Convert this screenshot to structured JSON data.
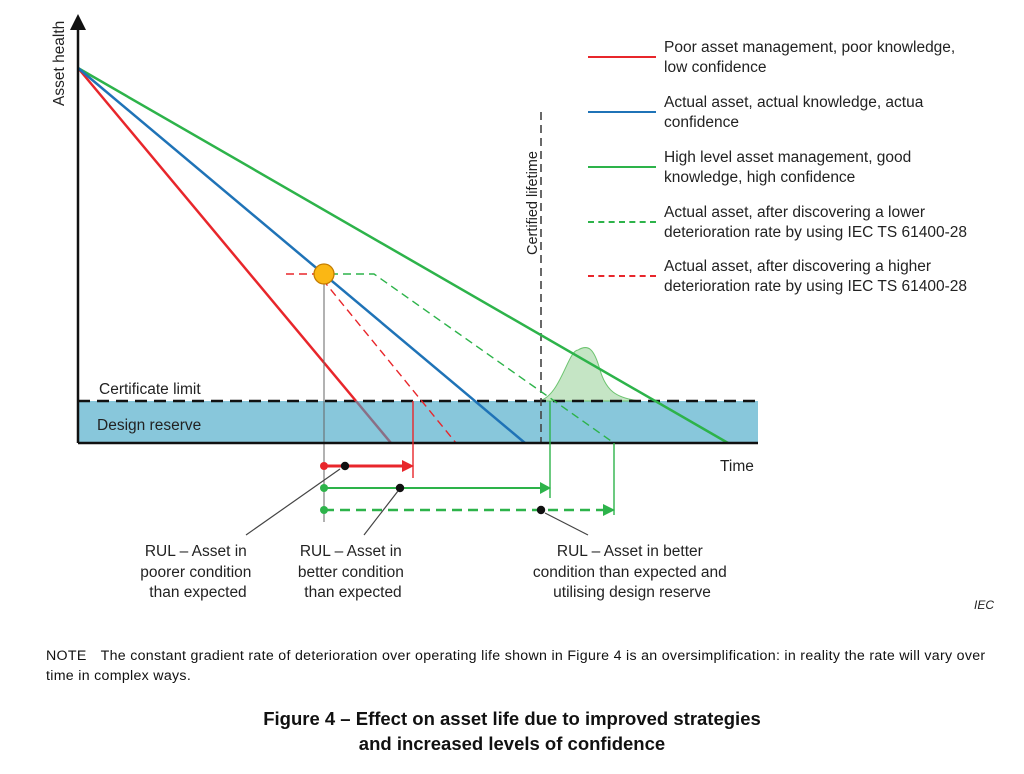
{
  "axes": {
    "y_label": "Asset health",
    "x_label": "Time"
  },
  "zones": {
    "certificate_limit": "Certificate limit",
    "design_reserve": "Design reserve",
    "certified_lifetime": "Certified lifetime"
  },
  "legend": [
    {
      "lines": [
        "Poor asset management, poor knowledge,",
        "low confidence"
      ],
      "color": "#e8262b",
      "style": "solid"
    },
    {
      "lines": [
        "Actual asset, actual knowledge, actua",
        "confidence"
      ],
      "color": "#1f73b7",
      "style": "solid"
    },
    {
      "lines": [
        "High level asset management, good",
        "knowledge, high confidence"
      ],
      "color": "#2db34a",
      "style": "solid"
    },
    {
      "lines": [
        "Actual asset, after discovering a lower",
        "deterioration rate by using IEC TS 61400-28"
      ],
      "color": "#2db34a",
      "style": "dashed"
    },
    {
      "lines": [
        "Actual asset, after discovering a higher",
        "deterioration rate by using IEC TS 61400-28"
      ],
      "color": "#e8262b",
      "style": "dashed"
    }
  ],
  "annotations": [
    {
      "lines": [
        "RUL – Asset in",
        "poorer condition",
        "than expected"
      ]
    },
    {
      "lines": [
        "RUL – Asset in",
        "better condition",
        "than expected"
      ]
    },
    {
      "lines": [
        "RUL – Asset in better",
        "condition than expected and",
        "utilising design reserve"
      ]
    }
  ],
  "iec_mark": "IEC",
  "note": {
    "tag": "NOTE",
    "text": "The constant gradient rate of deterioration over operating life shown in Figure 4 is an oversimplification: in reality the rate will vary over time in complex ways."
  },
  "caption": {
    "line1": "Figure 4 – Effect on asset life due to improved strategies",
    "line2": "and increased levels of confidence"
  },
  "colors": {
    "red": "#e8262b",
    "blue": "#1f73b7",
    "green": "#2db34a",
    "design_reserve_fill": "#88c7db",
    "marker_fill": "#fbb714"
  }
}
